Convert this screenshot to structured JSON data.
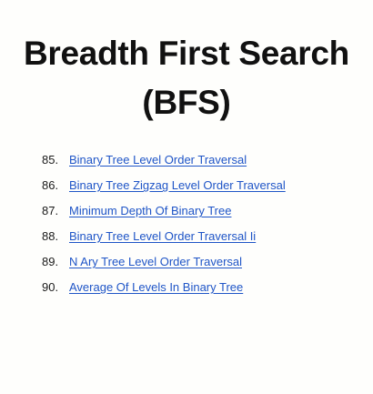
{
  "title": {
    "line1": "Breadth First Search",
    "line2": "(BFS)"
  },
  "colors": {
    "background": "#fefefc",
    "text": "#1a1a1a",
    "link": "#1f55c7"
  },
  "toc": [
    {
      "number": "85.",
      "label": "Binary Tree Level Order Traversal"
    },
    {
      "number": "86.",
      "label": "Binary Tree Zigzag Level Order Traversal"
    },
    {
      "number": "87.",
      "label": "Minimum Depth Of Binary Tree"
    },
    {
      "number": "88.",
      "label": "Binary Tree Level Order Traversal Ii"
    },
    {
      "number": "89.",
      "label": "N Ary Tree Level Order Traversal"
    },
    {
      "number": "90.",
      "label": "Average Of Levels In Binary Tree"
    }
  ]
}
